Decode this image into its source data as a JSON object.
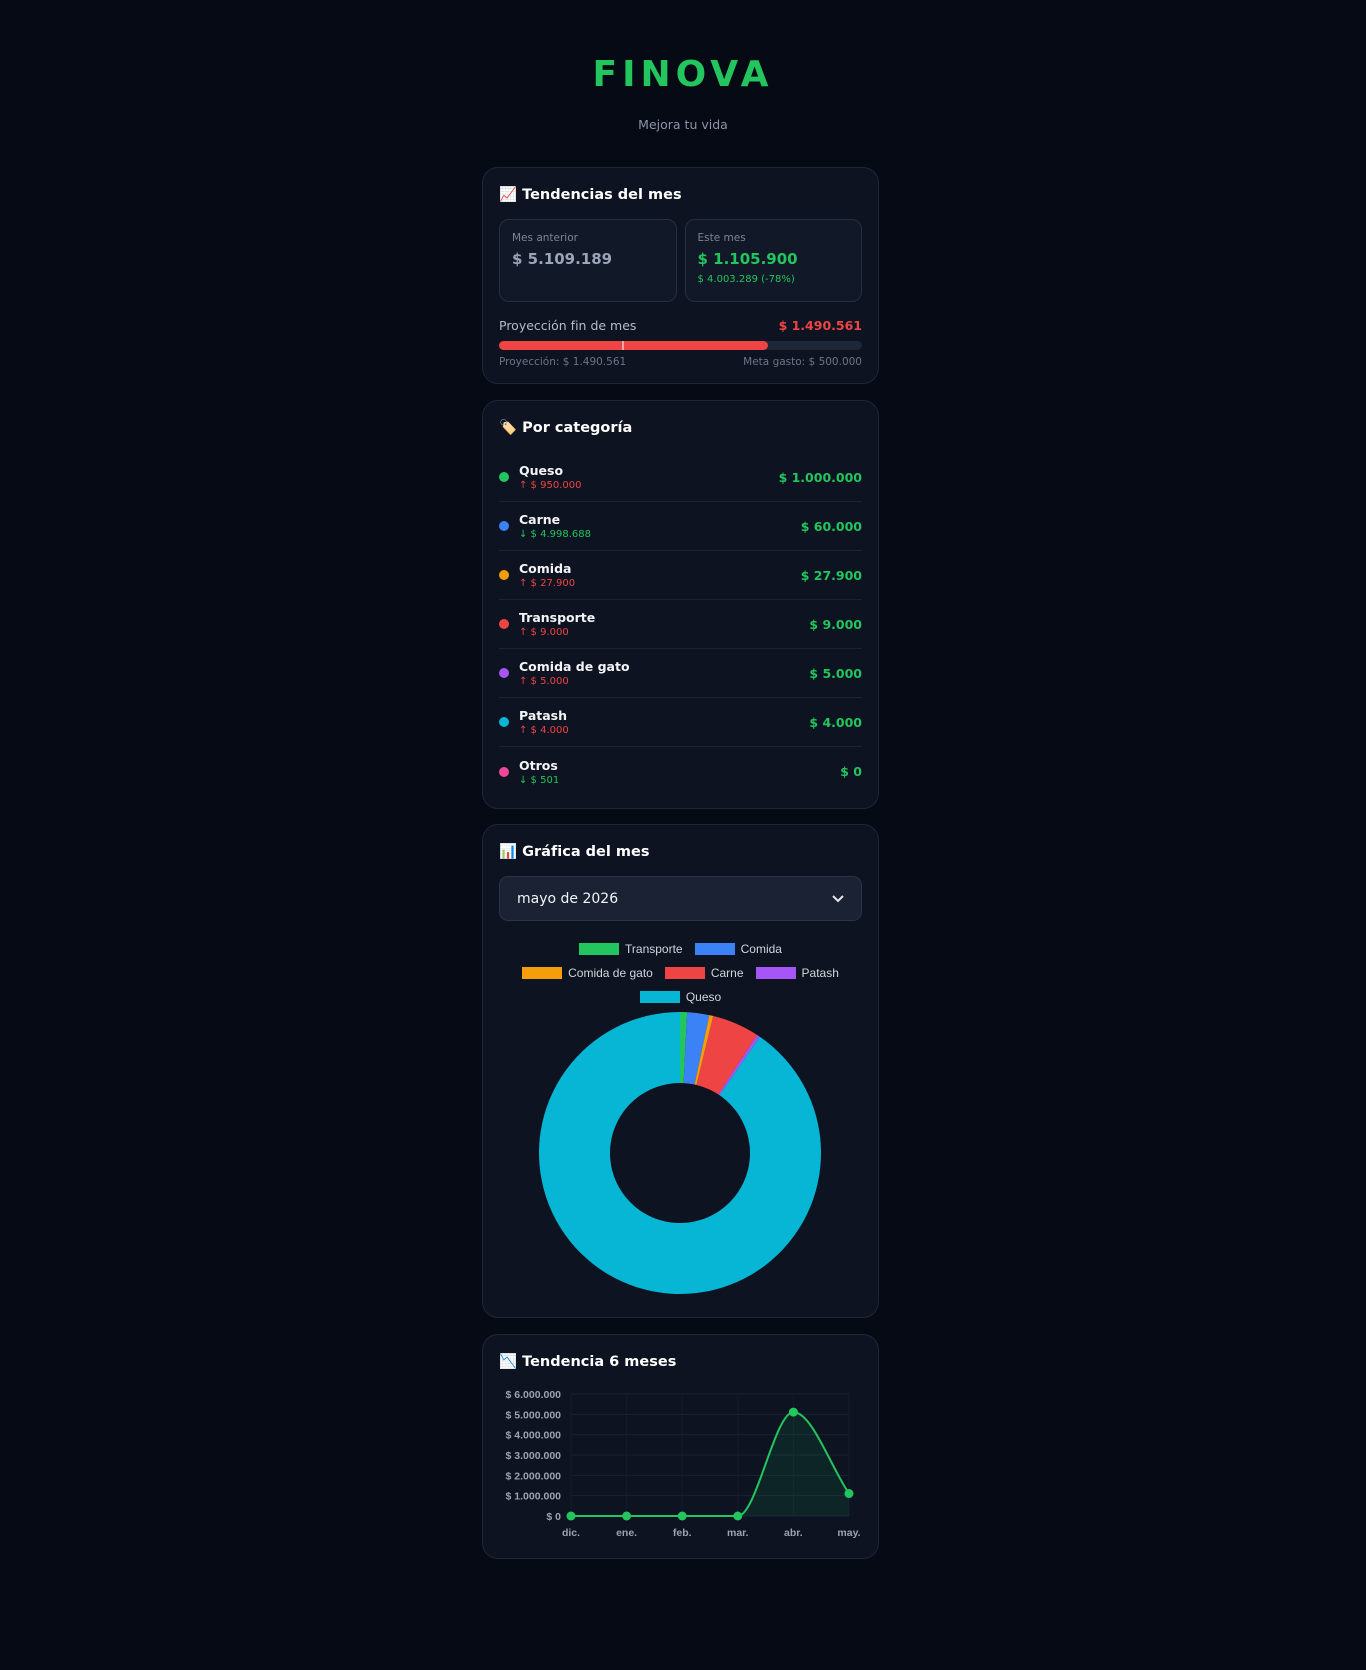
{
  "header": {
    "title": "FINOVA",
    "subtitle": "Mejora tu vida"
  },
  "trends_card": {
    "title": "📈 Tendencias del mes",
    "previous": {
      "label": "Mes anterior",
      "amount": "$ 5.109.189"
    },
    "current": {
      "label": "Este mes",
      "amount": "$ 1.105.900",
      "change": "$ 4.003.289 (-78%)"
    },
    "projection": {
      "label": "Proyección fin de mes",
      "amount": "$ 1.490.561",
      "bar_fill_percent": 74,
      "goal_marker_percent": 34,
      "note": "Proyección: $ 1.490.561",
      "goal": "Meta gasto: $ 500.000"
    }
  },
  "category_card": {
    "title": "🏷️ Por categoría",
    "items": [
      {
        "name": "Queso",
        "color": "#22c55e",
        "change": "↑ $ 950.000",
        "amount": "$ 1.000.000"
      },
      {
        "name": "Carne",
        "color": "#3b82f6",
        "change": "↓ $ 4.998.688",
        "amount": "$ 60.000"
      },
      {
        "name": "Comida",
        "color": "#f59e0b",
        "change": "↑ $ 27.900",
        "amount": "$ 27.900"
      },
      {
        "name": "Transporte",
        "color": "#ef4444",
        "change": "↑ $ 9.000",
        "amount": "$ 9.000"
      },
      {
        "name": "Comida de gato",
        "color": "#a855f7",
        "change": "↑ $ 5.000",
        "amount": "$ 5.000"
      },
      {
        "name": "Patash",
        "color": "#06b6d4",
        "change": "↑ $ 4.000",
        "amount": "$ 4.000"
      },
      {
        "name": "Otros",
        "color": "#ec4899",
        "change": "↓ $ 501",
        "amount": "$ 0"
      }
    ]
  },
  "chart_card": {
    "title": "📊 Gráfica del mes",
    "month_select": "mayo de 2026"
  },
  "trend_card": {
    "title": "📉 Tendencia 6 meses"
  },
  "chart_data": [
    {
      "type": "doughnut",
      "categories": [
        "Transporte",
        "Comida",
        "Comida de gato",
        "Carne",
        "Patash",
        "Queso"
      ],
      "values": [
        9000,
        27900,
        5000,
        60000,
        4000,
        1000000
      ],
      "colors": [
        "#22c55e",
        "#3b82f6",
        "#f59e0b",
        "#ef4444",
        "#a855f7",
        "#06b6d4"
      ]
    },
    {
      "type": "line",
      "categories": [
        "dic.",
        "ene.",
        "feb.",
        "mar.",
        "abr.",
        "may."
      ],
      "values": [
        0,
        0,
        0,
        0,
        5109189,
        1105900
      ],
      "color": "#22c55e",
      "ylim": [
        0,
        6000000
      ],
      "yticks": [
        {
          "value": 0,
          "label": "$ 0"
        },
        {
          "value": 1000000,
          "label": "$ 1.000.000"
        },
        {
          "value": 2000000,
          "label": "$ 2.000.000"
        },
        {
          "value": 3000000,
          "label": "$ 3.000.000"
        },
        {
          "value": 4000000,
          "label": "$ 4.000.000"
        },
        {
          "value": 5000000,
          "label": "$ 5.000.000"
        },
        {
          "value": 6000000,
          "label": "$ 6.000.000"
        }
      ],
      "grid": true
    }
  ]
}
